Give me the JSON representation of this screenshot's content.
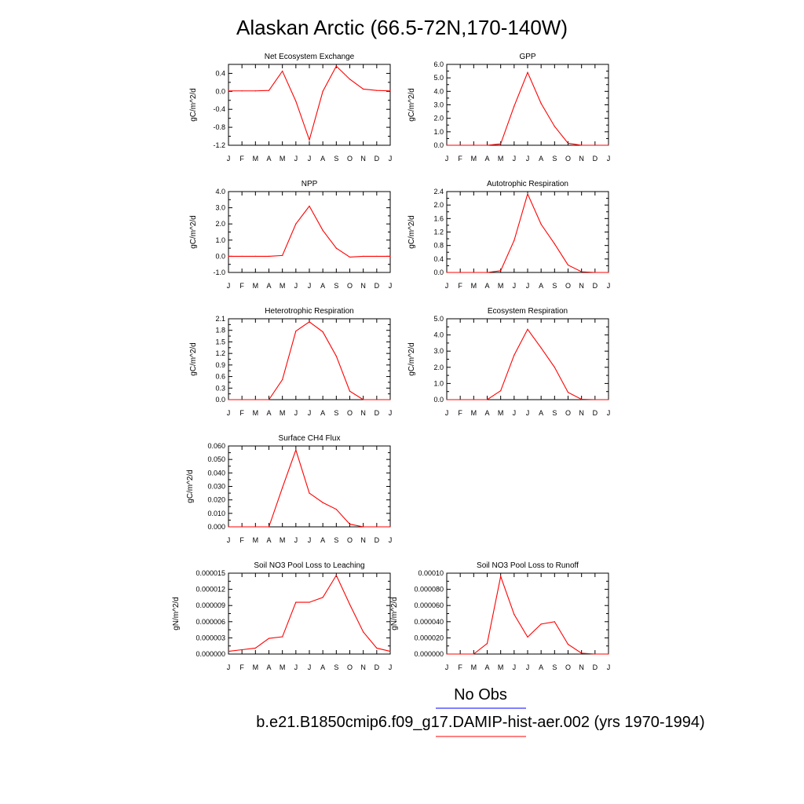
{
  "title": "Alaskan Arctic (66.5-72N,170-140W)",
  "colors": {
    "model": "#ff0000",
    "obs": "#0000ff"
  },
  "legend": {
    "obs_label": "No Obs",
    "model_label": "b.e21.B1850cmip6.f09_g17.DAMIP-hist-aer.002 (yrs 1970-1994)"
  },
  "chart_data": [
    {
      "type": "line",
      "title": "Net Ecosystem Exchange",
      "ylabel": "gC/m^2/d",
      "x": [
        "J",
        "F",
        "M",
        "A",
        "M",
        "J",
        "J",
        "A",
        "S",
        "O",
        "N",
        "D",
        "J"
      ],
      "ylim": [
        -1.2,
        0.6
      ],
      "yticks": [
        -1.2,
        -0.8,
        -0.4,
        0.0,
        0.4
      ],
      "ytick_labels": [
        "-1.2",
        "-0.8",
        "-0.4",
        "0.0",
        "0.4"
      ],
      "series": [
        {
          "values": [
            0.01,
            0.01,
            0.01,
            0.02,
            0.45,
            -0.22,
            -1.08,
            0.0,
            0.56,
            0.27,
            0.05,
            0.02,
            0.01
          ]
        }
      ]
    },
    {
      "type": "line",
      "title": "GPP",
      "ylabel": "gC/m^2/d",
      "x": [
        "J",
        "F",
        "M",
        "A",
        "M",
        "J",
        "J",
        "A",
        "S",
        "O",
        "N",
        "D",
        "J"
      ],
      "ylim": [
        0,
        6
      ],
      "yticks": [
        0,
        1,
        2,
        3,
        4,
        5,
        6
      ],
      "ytick_labels": [
        "0.0",
        "1.0",
        "2.0",
        "3.0",
        "4.0",
        "5.0",
        "6.0"
      ],
      "series": [
        {
          "values": [
            0.0,
            0.0,
            0.0,
            0.0,
            0.1,
            2.9,
            5.4,
            3.1,
            1.4,
            0.15,
            0.0,
            0.0,
            0.0
          ]
        }
      ]
    },
    {
      "type": "line",
      "title": "NPP",
      "ylabel": "gC/m^2/d",
      "x": [
        "J",
        "F",
        "M",
        "A",
        "M",
        "J",
        "J",
        "A",
        "S",
        "O",
        "N",
        "D",
        "J"
      ],
      "ylim": [
        -1,
        4
      ],
      "yticks": [
        -1,
        0,
        1,
        2,
        3,
        4
      ],
      "ytick_labels": [
        "-1.0",
        "0.0",
        "1.0",
        "2.0",
        "3.0",
        "4.0"
      ],
      "series": [
        {
          "values": [
            0.0,
            0.0,
            0.0,
            0.0,
            0.05,
            2.0,
            3.1,
            1.6,
            0.5,
            -0.05,
            0.0,
            0.0,
            0.0
          ]
        }
      ]
    },
    {
      "type": "line",
      "title": "Autotrophic Respiration",
      "ylabel": "gC/m^2/d",
      "x": [
        "J",
        "F",
        "M",
        "A",
        "M",
        "J",
        "J",
        "A",
        "S",
        "O",
        "N",
        "D",
        "J"
      ],
      "ylim": [
        0,
        2.4
      ],
      "yticks": [
        0,
        0.4,
        0.8,
        1.2,
        1.6,
        2.0,
        2.4
      ],
      "ytick_labels": [
        "0.0",
        "0.4",
        "0.8",
        "1.2",
        "1.6",
        "2.0",
        "2.4"
      ],
      "series": [
        {
          "values": [
            0.0,
            0.0,
            0.0,
            0.0,
            0.05,
            0.95,
            2.33,
            1.43,
            0.85,
            0.22,
            0.02,
            0.0,
            0.0
          ]
        }
      ]
    },
    {
      "type": "line",
      "title": "Heterotrophic Respiration",
      "ylabel": "gC/m^2/d",
      "x": [
        "J",
        "F",
        "M",
        "A",
        "M",
        "J",
        "J",
        "A",
        "S",
        "O",
        "N",
        "D",
        "J"
      ],
      "ylim": [
        0,
        2.1
      ],
      "yticks": [
        0,
        0.3,
        0.6,
        0.9,
        1.2,
        1.5,
        1.8,
        2.1
      ],
      "ytick_labels": [
        "0.0",
        "0.3",
        "0.6",
        "0.9",
        "1.2",
        "1.5",
        "1.8",
        "2.1"
      ],
      "series": [
        {
          "values": [
            0.0,
            0.0,
            0.0,
            0.0,
            0.52,
            1.78,
            2.02,
            1.76,
            1.13,
            0.22,
            0.0,
            0.0,
            0.0
          ]
        }
      ]
    },
    {
      "type": "line",
      "title": "Ecosystem Respiration",
      "ylabel": "gC/m^2/d",
      "x": [
        "J",
        "F",
        "M",
        "A",
        "M",
        "J",
        "J",
        "A",
        "S",
        "O",
        "N",
        "D",
        "J"
      ],
      "ylim": [
        0,
        5
      ],
      "yticks": [
        0,
        1,
        2,
        3,
        4,
        5
      ],
      "ytick_labels": [
        "0.0",
        "1.0",
        "2.0",
        "3.0",
        "4.0",
        "5.0"
      ],
      "series": [
        {
          "values": [
            0.0,
            0.0,
            0.0,
            0.0,
            0.55,
            2.75,
            4.35,
            3.2,
            2.0,
            0.45,
            0.02,
            0.0,
            0.0
          ]
        }
      ]
    },
    {
      "type": "line",
      "title": "Surface CH4 Flux",
      "ylabel": "gC/m^2/d",
      "x": [
        "J",
        "F",
        "M",
        "A",
        "M",
        "J",
        "J",
        "A",
        "S",
        "O",
        "N",
        "D",
        "J"
      ],
      "ylim": [
        0,
        0.06
      ],
      "yticks": [
        0,
        0.01,
        0.02,
        0.03,
        0.04,
        0.05,
        0.06
      ],
      "ytick_labels": [
        "0.000",
        "0.010",
        "0.020",
        "0.030",
        "0.040",
        "0.050",
        "0.060"
      ],
      "series": [
        {
          "values": [
            0.0,
            0.0,
            0.0,
            0.0,
            0.029,
            0.057,
            0.025,
            0.018,
            0.013,
            0.002,
            0.0,
            0.0,
            0.0
          ]
        }
      ]
    },
    {
      "type": "line",
      "title": "Soil NO3 Pool Loss to Leaching",
      "ylabel": "gN/m^2/d",
      "x": [
        "J",
        "F",
        "M",
        "A",
        "M",
        "J",
        "J",
        "A",
        "S",
        "O",
        "N",
        "D",
        "J"
      ],
      "ylim": [
        0,
        1.5e-05
      ],
      "yticks": [
        0,
        3e-06,
        6e-06,
        9e-06,
        1.2e-05,
        1.5e-05
      ],
      "ytick_labels": [
        "0.000000",
        "0.000003",
        "0.000006",
        "0.000009",
        "0.000012",
        "0.000015"
      ],
      "series": [
        {
          "values": [
            5e-07,
            8e-07,
            1.1e-06,
            2.9e-06,
            3.2e-06,
            9.6e-06,
            9.6e-06,
            1.05e-05,
            1.46e-05,
            9.2e-06,
            4.1e-06,
            1.1e-06,
            5e-07
          ]
        }
      ]
    },
    {
      "type": "line",
      "title": "Soil NO3 Pool Loss to Runoff",
      "ylabel": "gN/m^2/d",
      "x": [
        "J",
        "F",
        "M",
        "A",
        "M",
        "J",
        "J",
        "A",
        "S",
        "O",
        "N",
        "D",
        "J"
      ],
      "ylim": [
        0,
        0.0001
      ],
      "yticks": [
        0,
        2e-05,
        4e-05,
        6e-05,
        8e-05,
        0.0001
      ],
      "ytick_labels": [
        "0.000000",
        "0.000020",
        "0.000040",
        "0.000060",
        "0.000080",
        "0.00010"
      ],
      "series": [
        {
          "values": [
            0.0,
            0.0,
            0.0,
            1.3e-05,
            9.6e-05,
            4.9e-05,
            2.1e-05,
            3.7e-05,
            4e-05,
            1.2e-05,
            1e-06,
            0.0,
            0.0
          ]
        }
      ]
    }
  ]
}
